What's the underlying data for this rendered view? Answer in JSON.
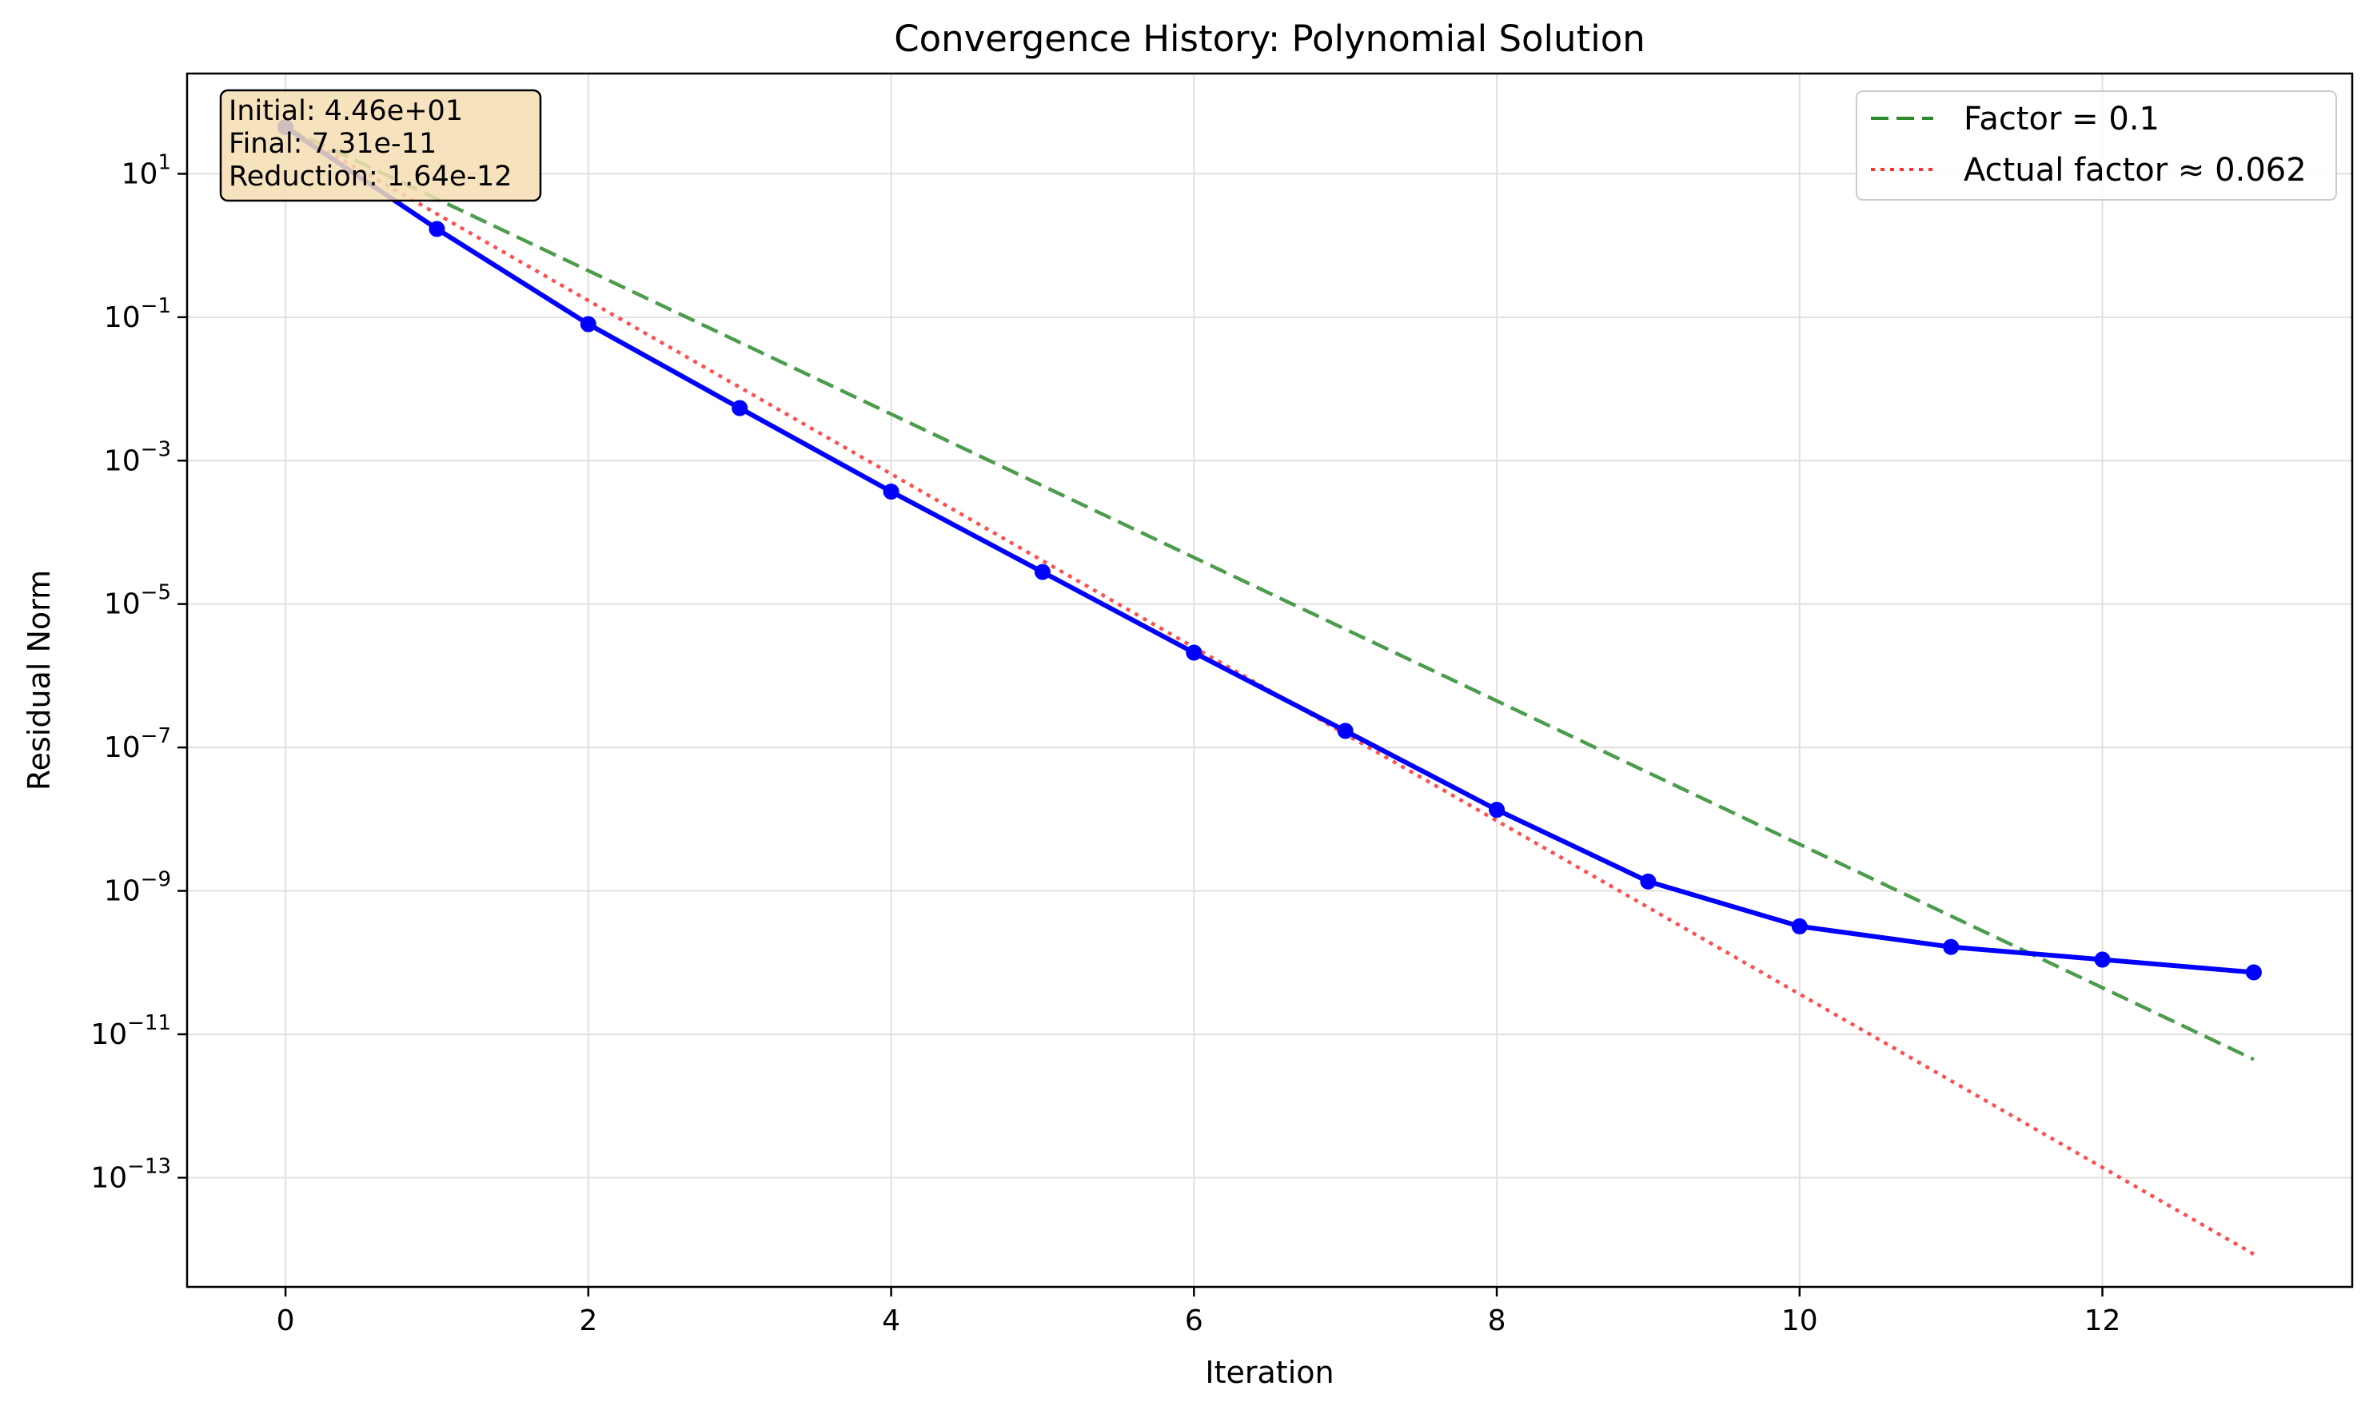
{
  "chart_data": {
    "type": "line",
    "title": "Convergence History: Polynomial Solution",
    "xlabel": "Iteration",
    "ylabel": "Residual Norm",
    "yscale": "log",
    "grid": true,
    "xlim": [
      -0.65,
      13.65
    ],
    "ylim": [
      3e-15,
      250
    ],
    "x_ticks": [
      0,
      2,
      4,
      6,
      8,
      10,
      12
    ],
    "y_ticks": [
      {
        "value": 10,
        "base": "10",
        "exp": "1"
      },
      {
        "value": 0.1,
        "base": "10",
        "exp": "−1"
      },
      {
        "value": 0.001,
        "base": "10",
        "exp": "−3"
      },
      {
        "value": 1e-05,
        "base": "10",
        "exp": "−5"
      },
      {
        "value": 1e-07,
        "base": "10",
        "exp": "−7"
      },
      {
        "value": 1e-09,
        "base": "10",
        "exp": "−9"
      },
      {
        "value": 1e-11,
        "base": "10",
        "exp": "−11"
      },
      {
        "value": 1e-13,
        "base": "10",
        "exp": "−13"
      }
    ],
    "legend_position": "upper right",
    "series": [
      {
        "key": "residual",
        "style": "solid",
        "marker": "circle",
        "color": "#0000ff",
        "in_legend": false,
        "x": [
          0,
          1,
          2,
          3,
          4,
          5,
          6,
          7,
          8,
          9,
          10,
          11,
          12,
          13
        ],
        "values": [
          44.6,
          1.7,
          0.08,
          0.0054,
          0.00037,
          2.8e-05,
          2.1e-06,
          1.7e-07,
          1.35e-08,
          1.35e-09,
          3.2e-10,
          1.65e-10,
          1.1e-10,
          7.31e-11
        ]
      },
      {
        "key": "factor",
        "name": "Factor = 0.1",
        "style": "dashed",
        "color": "#2e8b2e",
        "in_legend": true,
        "x": [
          0,
          13
        ],
        "values": [
          44.6,
          4.46e-12
        ]
      },
      {
        "key": "actual",
        "name": "Actual factor ≈ 0.062",
        "style": "dotted",
        "color": "#ff3030",
        "in_legend": true,
        "x": [
          0,
          13
        ],
        "values": [
          44.6,
          8.6e-15
        ]
      }
    ],
    "annotation": {
      "lines": [
        "Initial: 4.46e+01",
        "Final: 7.31e-11",
        "Reduction: 1.64e-12"
      ],
      "background": "#f5deb3"
    }
  }
}
